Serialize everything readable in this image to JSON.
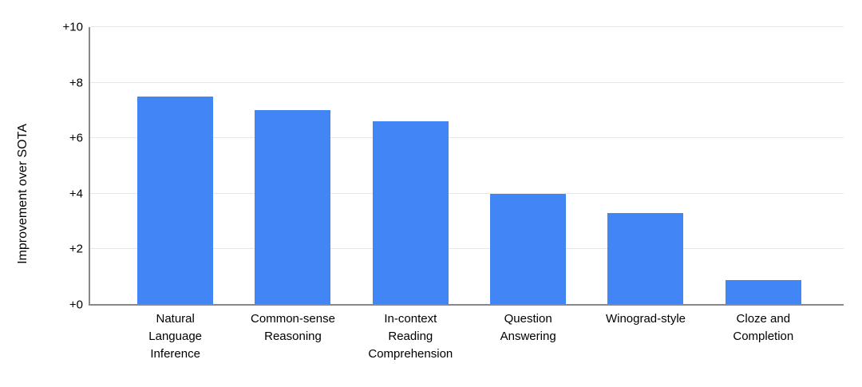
{
  "chart_data": {
    "type": "bar",
    "title": "",
    "xlabel": "",
    "ylabel": "Improvement over SOTA",
    "categories": [
      "Natural\nLanguage\nInference",
      "Common-sense\nReasoning",
      "In-context\nReading\nComprehension",
      "Question\nAnswering",
      "Winograd-style",
      "Cloze and\nCompletion"
    ],
    "values": [
      7.5,
      7.0,
      6.6,
      4.0,
      3.3,
      0.9
    ],
    "ylim": [
      0,
      10
    ],
    "yticks": [
      {
        "value": 0,
        "label": "+0"
      },
      {
        "value": 2,
        "label": "+2"
      },
      {
        "value": 4,
        "label": "+4"
      },
      {
        "value": 6,
        "label": "+6"
      },
      {
        "value": 8,
        "label": "+8"
      },
      {
        "value": 10,
        "label": "+10"
      }
    ],
    "grid": true,
    "legend": "none",
    "colors": {
      "bar": "#4285f4",
      "gridline": "#e7e7e7",
      "axis": "#888888",
      "text": "#000000"
    }
  }
}
